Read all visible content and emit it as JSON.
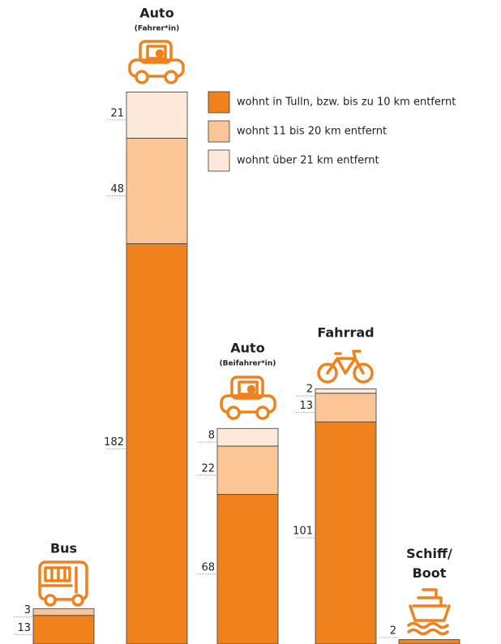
{
  "chart_data": {
    "type": "stacked-bar",
    "categories": [
      "Bus",
      "Auto",
      "Auto",
      "Fahrrad",
      "Schiff/ Boot"
    ],
    "category_notes": [
      null,
      "(Fahrer*in)",
      "(Beifahrer*in)",
      null,
      null
    ],
    "series": [
      {
        "name": "wohnt in Tulln, bzw. bis zu 10 km entfernt",
        "color": "#f0821e",
        "values": [
          13,
          182,
          68,
          101,
          2
        ]
      },
      {
        "name": "wohnt 11 bis 20 km entfernt",
        "color": "#fbc595",
        "values": [
          3,
          48,
          22,
          13,
          null
        ]
      },
      {
        "name": "wohnt über 21 km entfernt",
        "color": "#fde9d9",
        "values": [
          null,
          21,
          8,
          2,
          null
        ]
      }
    ],
    "ylim": [
      0,
      260
    ]
  }
}
